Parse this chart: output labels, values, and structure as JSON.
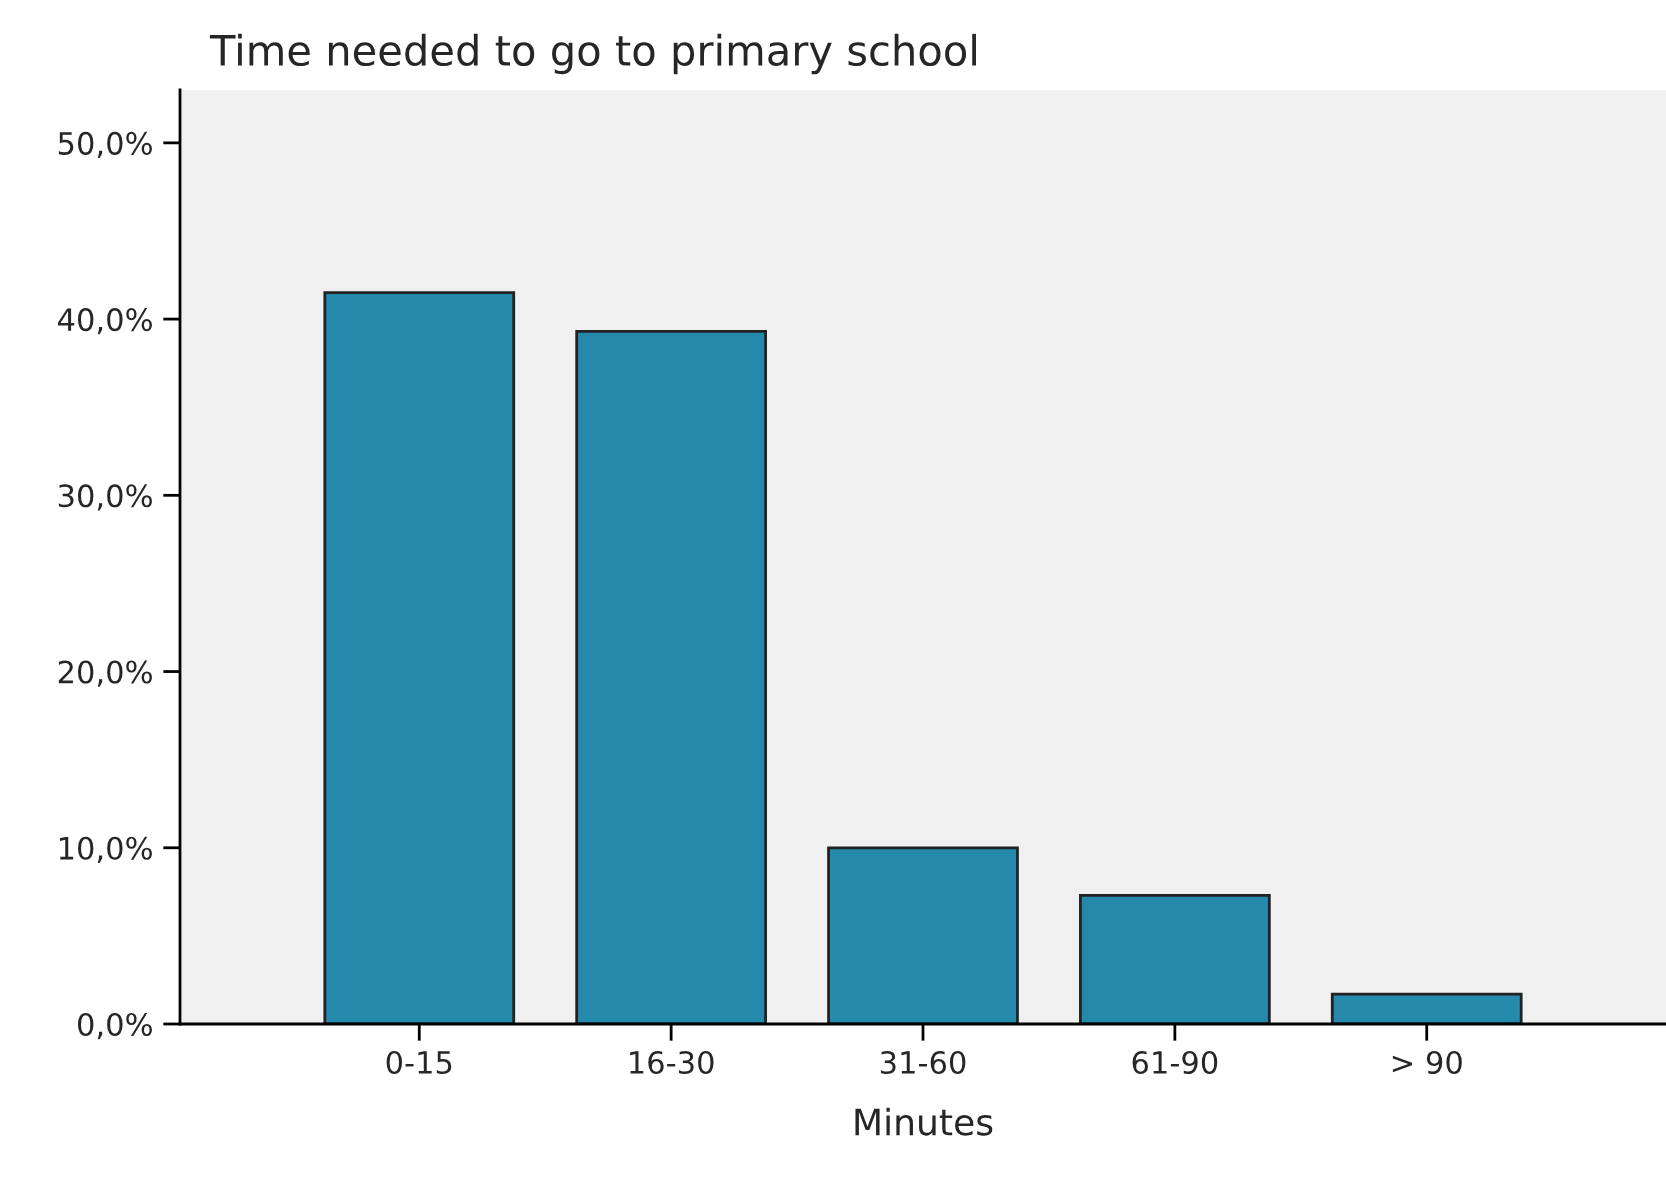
{
  "chart_data": {
    "type": "bar",
    "title": "Time needed to go to primary school",
    "xlabel": "Minutes",
    "categories": [
      "0-15",
      "16-30",
      "31-60",
      "61-90",
      "> 90"
    ],
    "values": [
      41.5,
      39.3,
      10.0,
      7.3,
      1.7
    ],
    "color": "#2589ab",
    "ylim": [
      0,
      53
    ],
    "yticks": [
      {
        "value": 0,
        "label": "0,0%"
      },
      {
        "value": 10,
        "label": "10,0%"
      },
      {
        "value": 20,
        "label": "20,0%"
      },
      {
        "value": 30,
        "label": "30,0%"
      },
      {
        "value": 40,
        "label": "40,0%"
      },
      {
        "value": 50,
        "label": "50,0%"
      }
    ],
    "grid": false
  }
}
